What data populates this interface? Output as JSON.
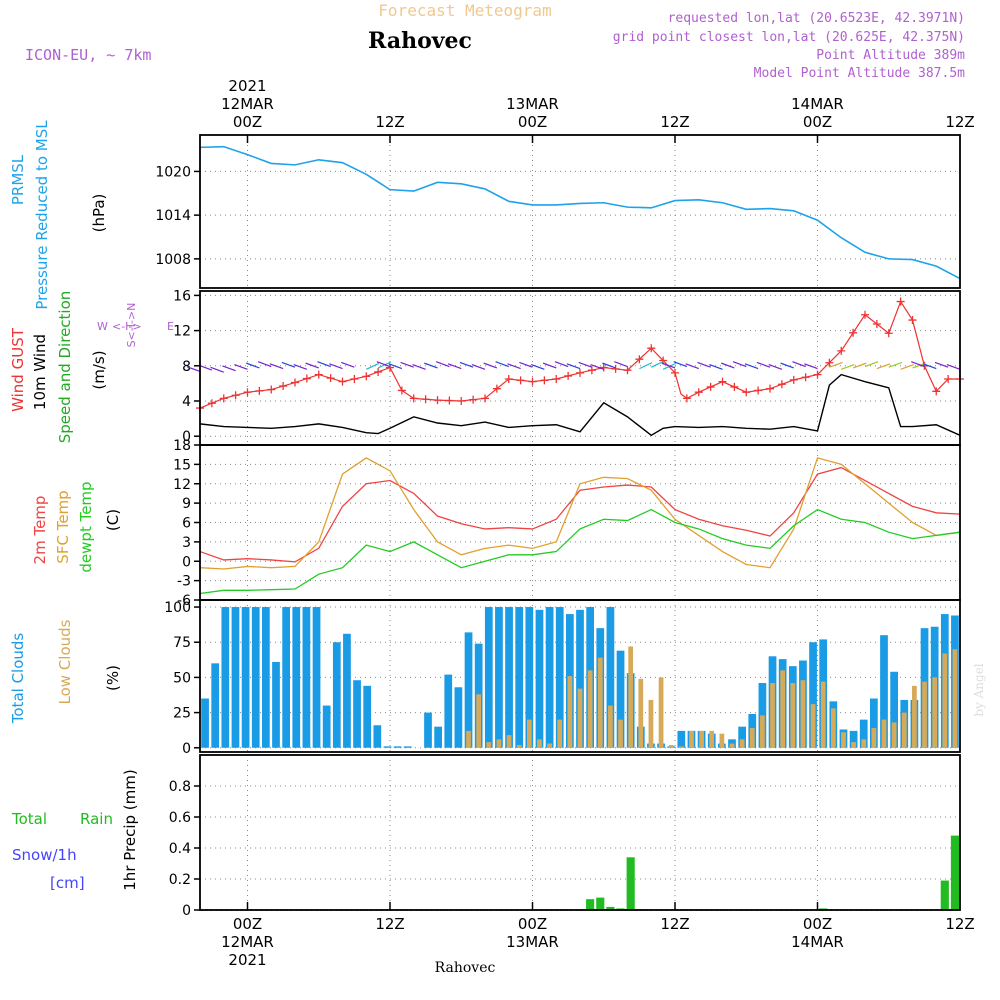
{
  "header": {
    "product": "Forecast Meteogram",
    "location": "Rahovec",
    "model": "ICON-EU, ~ 7km",
    "requested": "requested lon,lat (20.6523E, 42.3971N)",
    "grid_point": "grid point closest lon,lat (20.625E, 42.375N)",
    "point_altitude": "Point Altitude 389m",
    "model_altitude": "Model Point Altitude 387.5m",
    "footer_location": "Rahovec",
    "watermark": "by Angel"
  },
  "colors": {
    "pressure": "#1ea3e8",
    "gust": "#ee3333",
    "wind10m": "#000000",
    "wind_dir": "#22aa22",
    "temp2m": "#ee4444",
    "sfc_temp": "#e0a030",
    "dewpt": "#22cc22",
    "total_clouds": "#1a9be6",
    "low_clouds": "#d6aa58",
    "rain": "#22bb22",
    "snow": "#4444ff",
    "header_orange": "#f0c890",
    "header_purple": "#b060d0"
  },
  "time_axis": {
    "top_labels": [
      {
        "time": "00Z",
        "day": "12MAR",
        "year": "2021"
      },
      {
        "time": "12Z",
        "day": "",
        "year": ""
      },
      {
        "time": "00Z",
        "day": "13MAR",
        "year": ""
      },
      {
        "time": "12Z",
        "day": "",
        "year": ""
      },
      {
        "time": "00Z",
        "day": "14MAR",
        "year": ""
      },
      {
        "time": "12Z",
        "day": "",
        "year": ""
      }
    ],
    "bottom_labels": [
      {
        "time": "00Z",
        "day": "12MAR",
        "year": "2021"
      },
      {
        "time": "12Z",
        "day": "",
        "year": ""
      },
      {
        "time": "00Z",
        "day": "13MAR",
        "year": ""
      },
      {
        "time": "12Z",
        "day": "",
        "year": ""
      },
      {
        "time": "00Z",
        "day": "14MAR",
        "year": ""
      },
      {
        "time": "12Z",
        "day": "",
        "year": ""
      }
    ]
  },
  "panel_labels": {
    "pressure": {
      "line1": "PRMSL",
      "line2": "Pressure Reduced to MSL",
      "unit": "(hPa)"
    },
    "wind": {
      "gust": "Wind GUST",
      "w10": "10m Wind",
      "dir": "Speed and Direction",
      "unit": "(m/s)",
      "compass_ns": "S<-I->N",
      "compass_w": "W",
      "compass_mid": "<-I->",
      "compass_e": "E"
    },
    "temp": {
      "t2m": "2m Temp",
      "sfc": "SFC Temp",
      "dew": "dewpt Temp",
      "unit": "(C)"
    },
    "clouds": {
      "total": "Total Clouds",
      "low": "Low Clouds",
      "unit": "(%)"
    },
    "precip": {
      "rain_a": "Total",
      "rain_b": "Rain",
      "snow": "Snow/1h",
      "snow_unit": "[cm]",
      "title": "1hr Precip (mm)"
    }
  },
  "chart_data": [
    {
      "type": "line",
      "name": "pressure",
      "title": "PRMSL Pressure Reduced to MSL",
      "ylabel": "(hPa)",
      "x_start_hour": -4,
      "x_end_hour": 60,
      "ylim": [
        1004,
        1025
      ],
      "yticks": [
        1008,
        1014,
        1020
      ],
      "yticklabels": [
        "1008",
        "1014",
        "1020"
      ],
      "x": [
        -4,
        -2,
        0,
        2,
        4,
        6,
        8,
        10,
        12,
        14,
        16,
        18,
        20,
        22,
        24,
        26,
        28,
        30,
        32,
        34,
        36,
        38,
        40,
        42,
        44,
        46,
        48,
        50,
        52,
        54,
        56,
        58,
        60
      ],
      "values": [
        1023.3,
        1023.4,
        1022.3,
        1021.1,
        1020.9,
        1021.6,
        1021.2,
        1019.6,
        1017.5,
        1017.3,
        1018.5,
        1018.3,
        1017.6,
        1015.9,
        1015.4,
        1015.4,
        1015.6,
        1015.7,
        1015.1,
        1015.0,
        1016.0,
        1016.1,
        1015.7,
        1014.8,
        1014.9,
        1014.6,
        1013.3,
        1010.9,
        1008.9,
        1008.0,
        1007.9,
        1007.0,
        1005.3
      ]
    },
    {
      "type": "line",
      "name": "wind",
      "title": "Wind GUST / 10m Wind Speed and Direction",
      "ylabel": "(m/s)",
      "x_start_hour": -4,
      "x_end_hour": 60,
      "ylim": [
        -1,
        16.5
      ],
      "yticks": [
        0,
        4,
        8,
        12,
        16
      ],
      "yticklabels": [
        "0",
        "4",
        "8",
        "12",
        "16"
      ],
      "series": [
        {
          "name": "Wind GUST",
          "x": [
            -4,
            -2,
            0,
            2,
            4,
            6,
            8,
            10,
            12,
            13,
            14,
            16,
            18,
            20,
            22,
            24,
            26,
            28,
            30,
            32,
            34,
            36,
            36.5,
            37,
            38,
            40,
            42,
            44,
            46,
            48,
            50,
            52,
            54,
            55,
            56,
            57,
            58,
            59,
            60
          ],
          "values": [
            3.2,
            4.3,
            5.0,
            5.3,
            6.1,
            7.0,
            6.2,
            6.8,
            7.8,
            5.2,
            4.3,
            4.1,
            4.0,
            4.3,
            6.5,
            6.2,
            6.5,
            7.2,
            7.8,
            7.5,
            10.0,
            7.2,
            4.8,
            4.3,
            5.0,
            6.2,
            5.0,
            5.4,
            6.4,
            7.0,
            9.7,
            13.8,
            11.7,
            15.3,
            13.2,
            8.0,
            5.1,
            6.5,
            6.5
          ]
        },
        {
          "name": "10m Wind",
          "x": [
            -4,
            -2,
            0,
            2,
            4,
            6,
            8,
            10,
            11,
            12,
            14,
            16,
            18,
            20,
            22,
            24,
            26,
            28,
            30,
            32,
            34,
            35,
            36,
            38,
            40,
            42,
            44,
            46,
            48,
            49,
            50,
            52,
            54,
            55,
            56,
            58,
            60
          ],
          "values": [
            1.4,
            1.1,
            1.0,
            0.9,
            1.1,
            1.4,
            1.0,
            0.4,
            0.3,
            0.9,
            2.2,
            1.5,
            1.2,
            1.6,
            1.0,
            1.2,
            1.3,
            0.5,
            3.8,
            2.2,
            0.1,
            0.9,
            1.1,
            1.0,
            1.1,
            0.9,
            0.8,
            1.1,
            0.6,
            5.8,
            7.0,
            6.2,
            5.5,
            1.1,
            1.1,
            1.3,
            0.1
          ]
        }
      ],
      "direction_arrows": "hourly barbs near 7.5 m/s; mostly westward (purple/blue), north-eastward (green/orange) around hours 33-35 and 49-56"
    },
    {
      "type": "line",
      "name": "temperature",
      "title": "2m Temp / SFC Temp / dewpt Temp",
      "ylabel": "(C)",
      "x_start_hour": -4,
      "x_end_hour": 60,
      "ylim": [
        -6,
        18
      ],
      "yticks": [
        -6,
        -3,
        0,
        3,
        6,
        9,
        12,
        15,
        18
      ],
      "yticklabels": [
        "-6",
        "-3",
        "0",
        "3",
        "6",
        "9",
        "12",
        "15",
        "18"
      ],
      "series": [
        {
          "name": "2m Temp",
          "x": [
            -4,
            -2,
            0,
            2,
            4,
            6,
            8,
            10,
            12,
            14,
            16,
            18,
            20,
            22,
            24,
            26,
            28,
            30,
            32,
            34,
            36,
            38,
            40,
            42,
            44,
            46,
            48,
            50,
            52,
            54,
            56,
            58,
            60
          ],
          "values": [
            1.5,
            0.2,
            0.4,
            0.2,
            -0.1,
            2.0,
            8.5,
            12.0,
            12.5,
            10.5,
            7.0,
            5.8,
            5.0,
            5.2,
            5.0,
            6.5,
            11.0,
            11.5,
            11.8,
            11.5,
            8.0,
            6.5,
            5.5,
            4.8,
            3.9,
            7.5,
            13.5,
            14.5,
            12.5,
            10.5,
            8.5,
            7.5,
            7.3
          ]
        },
        {
          "name": "SFC Temp",
          "x": [
            -4,
            -2,
            0,
            2,
            4,
            6,
            8,
            10,
            12,
            14,
            16,
            18,
            20,
            22,
            24,
            26,
            28,
            30,
            32,
            34,
            36,
            38,
            40,
            42,
            44,
            46,
            48,
            50,
            52,
            54,
            56,
            58,
            60
          ],
          "values": [
            -1.0,
            -1.2,
            -0.8,
            -1.0,
            -0.8,
            3.0,
            13.5,
            16.0,
            14.0,
            8.0,
            3.0,
            1.0,
            2.0,
            2.5,
            2.0,
            3.0,
            12.0,
            13.0,
            12.8,
            11.0,
            6.5,
            4.0,
            1.5,
            -0.5,
            -1.0,
            5.0,
            16.0,
            15.0,
            12.0,
            9.0,
            6.0,
            4.0,
            4.5
          ]
        },
        {
          "name": "dewpt Temp",
          "x": [
            -4,
            -2,
            0,
            2,
            4,
            6,
            8,
            10,
            12,
            14,
            16,
            18,
            20,
            22,
            24,
            26,
            28,
            30,
            32,
            34,
            36,
            38,
            40,
            42,
            44,
            46,
            48,
            50,
            52,
            54,
            56,
            58,
            60
          ],
          "values": [
            -5.0,
            -4.5,
            -4.5,
            -4.4,
            -4.3,
            -2.0,
            -1.0,
            2.5,
            1.5,
            3.0,
            1.0,
            -1.0,
            0.0,
            1.0,
            1.0,
            1.5,
            5.0,
            6.5,
            6.3,
            8.0,
            6.0,
            5.0,
            3.5,
            2.5,
            2.0,
            5.5,
            8.0,
            6.5,
            6.0,
            4.5,
            3.5,
            4.0,
            4.5
          ]
        }
      ]
    },
    {
      "type": "bar",
      "name": "clouds",
      "title": "Total Clouds / Low Clouds",
      "ylabel": "(%)",
      "x_start_hour": -4,
      "x_end_hour": 60,
      "ylim": [
        -3,
        105
      ],
      "yticks": [
        0,
        25,
        50,
        75,
        100
      ],
      "yticklabels": [
        "0",
        "25",
        "50",
        "75",
        "100"
      ],
      "series": [
        {
          "name": "Total Clouds",
          "values": [
            35,
            60,
            100,
            100,
            100,
            100,
            100,
            61,
            100,
            100,
            100,
            100,
            30,
            75,
            81,
            48,
            44,
            16,
            1,
            1,
            1,
            0,
            25,
            15,
            52,
            43,
            82,
            74,
            100,
            100,
            100,
            100,
            100,
            98,
            100,
            100,
            95,
            98,
            100,
            85,
            100,
            69,
            53,
            15,
            3,
            3,
            1,
            12,
            12,
            12,
            10,
            3,
            6,
            15,
            24,
            46,
            65,
            63,
            58,
            62,
            75,
            77,
            33,
            13,
            12,
            20,
            35,
            80,
            54,
            34,
            34,
            85,
            86,
            95,
            94
          ]
        },
        {
          "name": "Low Clouds",
          "values": [
            0,
            0,
            0,
            0,
            0,
            0,
            0,
            0,
            0,
            0,
            0,
            0,
            0,
            0,
            0,
            0,
            0,
            0,
            0,
            0,
            0,
            0,
            0,
            0,
            0,
            0,
            12,
            38,
            4,
            6,
            9,
            2,
            20,
            6,
            3,
            20,
            51,
            42,
            55,
            64,
            30,
            20,
            72,
            49,
            34,
            50,
            2,
            1,
            12,
            12,
            12,
            10,
            3,
            6,
            14,
            23,
            46,
            55,
            46,
            48,
            31,
            47,
            28,
            11,
            4,
            6,
            14,
            20,
            18,
            25,
            44,
            47,
            50,
            67,
            70
          ]
        }
      ]
    },
    {
      "type": "bar",
      "name": "precipitation",
      "title": "1hr Precip (mm)",
      "ylabel": "1hr Precip (mm)",
      "x_start_hour": -4,
      "x_end_hour": 60,
      "ylim": [
        0,
        1.0
      ],
      "yticks": [
        0,
        0.2,
        0.4,
        0.6,
        0.8
      ],
      "yticklabels": [
        "0",
        "0.2",
        "0.4",
        "0.6",
        "0.8"
      ],
      "series": [
        {
          "name": "Total Rain",
          "values": [
            0,
            0,
            0,
            0,
            0,
            0,
            0,
            0,
            0,
            0,
            0,
            0,
            0,
            0,
            0,
            0,
            0,
            0,
            0,
            0,
            0,
            0,
            0,
            0,
            0,
            0,
            0,
            0,
            0,
            0,
            0,
            0,
            0,
            0,
            0,
            0,
            0,
            0,
            0.07,
            0.08,
            0.02,
            0.01,
            0.34,
            0,
            0,
            0,
            0,
            0,
            0,
            0,
            0,
            0,
            0,
            0,
            0,
            0,
            0,
            0,
            0,
            0,
            0,
            0.01,
            0,
            0,
            0,
            0,
            0,
            0,
            0,
            0,
            0,
            0,
            0,
            0.19,
            0.48
          ]
        },
        {
          "name": "Snow/1h",
          "values": [
            0,
            0,
            0,
            0,
            0,
            0,
            0,
            0,
            0,
            0,
            0,
            0,
            0,
            0,
            0,
            0,
            0,
            0,
            0,
            0,
            0,
            0,
            0,
            0,
            0,
            0,
            0,
            0,
            0,
            0,
            0,
            0,
            0,
            0,
            0,
            0,
            0,
            0,
            0,
            0,
            0,
            0,
            0,
            0,
            0,
            0,
            0,
            0,
            0,
            0,
            0,
            0,
            0,
            0,
            0,
            0,
            0,
            0,
            0,
            0,
            0,
            0,
            0,
            0,
            0,
            0,
            0,
            0,
            0,
            0,
            0,
            0,
            0,
            0,
            0
          ]
        }
      ]
    }
  ]
}
